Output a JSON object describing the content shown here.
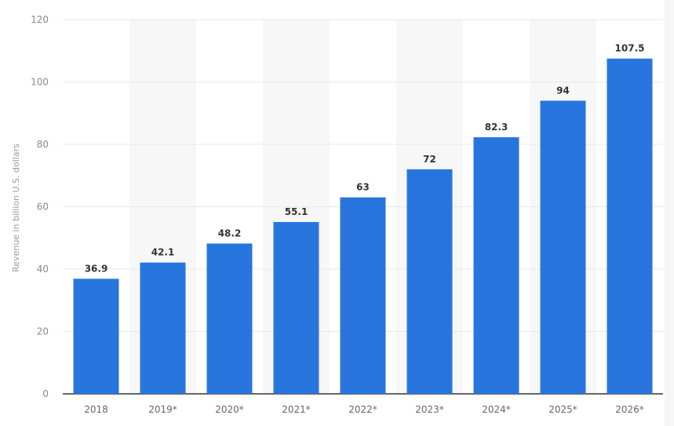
{
  "chart_data": {
    "type": "bar",
    "title": "",
    "xlabel": "",
    "ylabel": "Revenue in billion U.S. dollars",
    "categories": [
      "2018",
      "2019*",
      "2020*",
      "2021*",
      "2022*",
      "2023*",
      "2024*",
      "2025*",
      "2026*"
    ],
    "values": [
      36.9,
      42.1,
      48.2,
      55.1,
      63,
      72,
      82.3,
      94,
      107.5
    ],
    "data_labels": [
      "36.9",
      "42.1",
      "48.2",
      "55.1",
      "63",
      "72",
      "82.3",
      "94",
      "107.5"
    ],
    "ylim": [
      0,
      120
    ],
    "yticks": [
      0,
      20,
      40,
      60,
      80,
      100,
      120
    ],
    "grid": true,
    "colors": {
      "bar": "#2876dd",
      "band": "#f7f7f7",
      "grid": "#e8e8e8",
      "axis": "#333333"
    }
  }
}
